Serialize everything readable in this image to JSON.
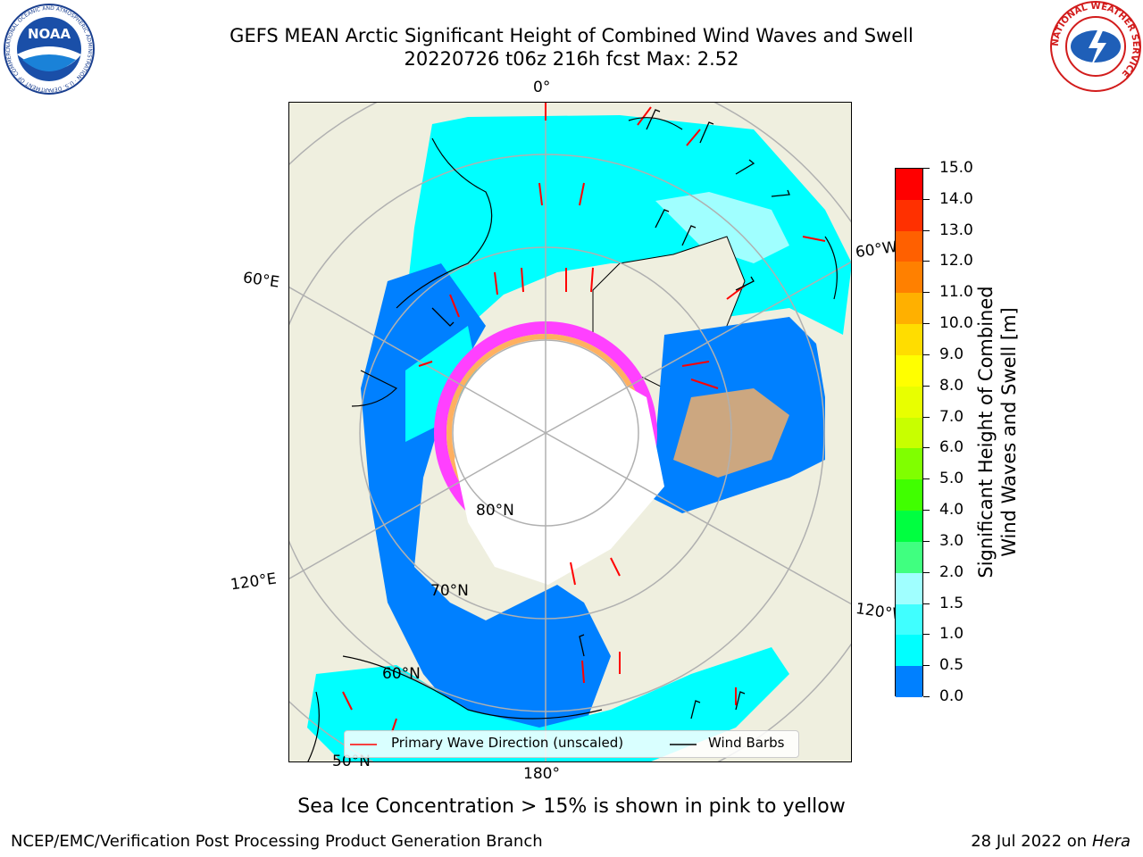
{
  "header": {
    "title_line1": "GEFS MEAN Arctic Significant Height of Combined Wind Waves and Swell",
    "title_line2": "20220726 t06z 216h fcst   Max: 2.52",
    "noaa_logo_text": "NOAA",
    "noaa_ring_text": "NATIONAL OCEANIC AND ATMOSPHERIC ADMINISTRATION · U.S. DEPARTMENT OF COMMERCE",
    "nws_ring_text": "NATIONAL WEATHER SERVICE"
  },
  "map": {
    "projection": "north-polar-stereographic",
    "longitude_labels": [
      "0°",
      "60°E",
      "120°E",
      "180°",
      "120°W",
      "60°W"
    ],
    "latitude_labels": [
      "80°N",
      "70°N",
      "60°N",
      "50°N"
    ],
    "colors": {
      "land": "#efefdf",
      "ocean_low": "#0000ff",
      "ocean_mid": "#0080ff",
      "ocean_high": "#00ffff",
      "ice_pink": "#ff40ff",
      "ice_orange": "#ffb060"
    }
  },
  "colorbar": {
    "label": "Significant Height of Combined Wind Waves and Swell [m]",
    "label_line1": "Significant Height of Combined",
    "label_line2": "Wind Waves and Swell [m]",
    "ticks": [
      "15.0",
      "14.0",
      "13.0",
      "12.0",
      "11.0",
      "10.0",
      "9.0",
      "8.0",
      "7.0",
      "6.0",
      "5.0",
      "4.0",
      "3.0",
      "2.0",
      "1.5",
      "1.0",
      "0.5",
      "0.0"
    ],
    "colors": [
      "#ff0000",
      "#ff3000",
      "#ff6000",
      "#ff8000",
      "#ffb000",
      "#ffdd00",
      "#ffff00",
      "#e8ff00",
      "#c8ff00",
      "#80ff00",
      "#40ff00",
      "#00ff40",
      "#40ff80",
      "#a0ffff",
      "#40ffff",
      "#00ffff",
      "#0080ff",
      "#0000ff"
    ]
  },
  "legend": {
    "wave_label": "Primary Wave Direction (unscaled)",
    "barb_label": "Wind Barbs"
  },
  "subtitle": "Sea Ice Concentration > 15% is shown in pink to yellow",
  "footer": {
    "left": "NCEP/EMC/Verification Post Processing Product Generation Branch",
    "right_date": "28 Jul 2022 on",
    "right_host": "Hera"
  }
}
